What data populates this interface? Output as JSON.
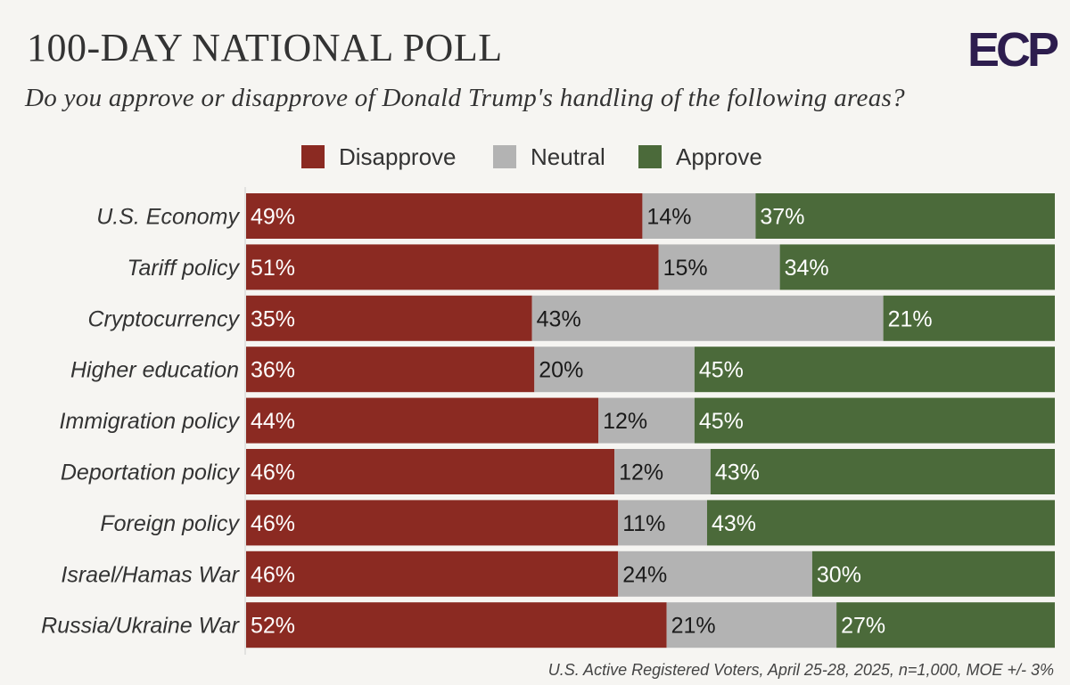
{
  "header": {
    "title": "100-DAY NATIONAL POLL",
    "subtitle": "Do you approve or disapprove of Donald Trump's handling of the following areas?"
  },
  "logo": {
    "text": "ECP"
  },
  "legend": [
    {
      "label": "Disapprove",
      "color": "#8b2a22"
    },
    {
      "label": "Neutral",
      "color": "#b3b3b3"
    },
    {
      "label": "Approve",
      "color": "#4b6a3a"
    }
  ],
  "chart_data": {
    "type": "bar",
    "orientation": "horizontal",
    "stacked": true,
    "categories": [
      "U.S. Economy",
      "Tariff policy",
      "Cryptocurrency",
      "Higher education",
      "Immigration policy",
      "Deportation policy",
      "Foreign policy",
      "Israel/Hamas War",
      "Russia/Ukraine War"
    ],
    "series": [
      {
        "name": "Disapprove",
        "values": [
          49,
          51,
          35,
          36,
          44,
          46,
          46,
          46,
          52
        ]
      },
      {
        "name": "Neutral",
        "values": [
          14,
          15,
          43,
          20,
          12,
          12,
          11,
          24,
          21
        ]
      },
      {
        "name": "Approve",
        "values": [
          37,
          34,
          21,
          45,
          45,
          43,
          43,
          30,
          27
        ]
      }
    ],
    "value_suffix": "%",
    "legend_position": "top-center",
    "grid": false
  },
  "footnote": "U.S. Active Registered Voters, April 25-28, 2025, n=1,000, MOE +/- 3%"
}
